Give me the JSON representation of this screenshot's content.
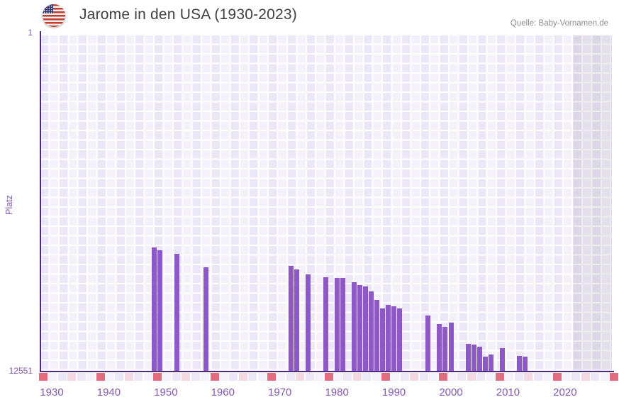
{
  "header": {
    "title": "Jarome in den USA (1930-2023)",
    "flag_icon": "us-flag-icon",
    "source": "Quelle: Baby-Vornamen.de"
  },
  "chart_data": {
    "type": "bar",
    "title": "Jarome in den USA (1930-2023)",
    "source": "Quelle: Baby-Vornamen.de",
    "xlabel": "",
    "ylabel": "Platz",
    "y_axis": {
      "top_tick_label": "1",
      "bottom_tick_label": "12551",
      "min": 1,
      "max": 12551,
      "inverted": true,
      "note": "rank 1 at top, rank 12551 at baseline; bar height = distance from worst rank"
    },
    "x_tick_labels": [
      "1930",
      "1940",
      "1950",
      "1960",
      "1970",
      "1980",
      "1990",
      "2000",
      "2010",
      "2020"
    ],
    "x_tick_years": [
      1930,
      1940,
      1950,
      1960,
      1970,
      1980,
      1990,
      2000,
      2010,
      2020
    ],
    "x_range_years": [
      1928,
      2028
    ],
    "shaded_region_years": [
      2021,
      2028
    ],
    "grid": true,
    "legend": "none",
    "bars": [
      {
        "year": 1948,
        "rank": 7920
      },
      {
        "year": 1949,
        "rank": 8020
      },
      {
        "year": 1952,
        "rank": 8160
      },
      {
        "year": 1957,
        "rank": 8660
      },
      {
        "year": 1972,
        "rank": 8610
      },
      {
        "year": 1973,
        "rank": 8740
      },
      {
        "year": 1975,
        "rank": 8920
      },
      {
        "year": 1978,
        "rank": 9030
      },
      {
        "year": 1980,
        "rank": 9060
      },
      {
        "year": 1981,
        "rank": 9060
      },
      {
        "year": 1983,
        "rank": 9220
      },
      {
        "year": 1984,
        "rank": 9320
      },
      {
        "year": 1985,
        "rank": 9370
      },
      {
        "year": 1986,
        "rank": 9560
      },
      {
        "year": 1987,
        "rank": 9880
      },
      {
        "year": 1988,
        "rank": 10190
      },
      {
        "year": 1989,
        "rank": 10060
      },
      {
        "year": 1990,
        "rank": 10110
      },
      {
        "year": 1991,
        "rank": 10190
      },
      {
        "year": 1996,
        "rank": 10460
      },
      {
        "year": 1998,
        "rank": 10780
      },
      {
        "year": 1999,
        "rank": 10880
      },
      {
        "year": 2000,
        "rank": 10720
      },
      {
        "year": 2003,
        "rank": 11520
      },
      {
        "year": 2004,
        "rank": 11540
      },
      {
        "year": 2005,
        "rank": 11620
      },
      {
        "year": 2006,
        "rank": 11990
      },
      {
        "year": 2007,
        "rank": 11920
      },
      {
        "year": 2009,
        "rank": 11680
      },
      {
        "year": 2012,
        "rank": 11970
      },
      {
        "year": 2013,
        "rank": 11990
      }
    ],
    "colors": {
      "bar": "#8c59c5",
      "axis_line": "#4e2a84",
      "tick_label": "#8459ad",
      "decade_marker": "#e26b7e",
      "half_decade_marker": "#f3d7e1",
      "plot_background": "#f0ecf9"
    }
  }
}
